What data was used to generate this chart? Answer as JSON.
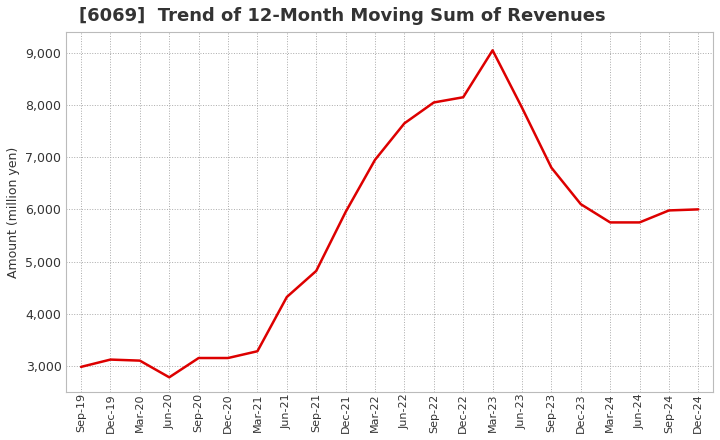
{
  "title": "[6069]  Trend of 12-Month Moving Sum of Revenues",
  "ylabel": "Amount (million yen)",
  "line_color": "#dd0000",
  "background_color": "#ffffff",
  "plot_bg_color": "#ffffff",
  "grid_color": "#aaaaaa",
  "ylim": [
    2500,
    9400
  ],
  "yticks": [
    3000,
    4000,
    5000,
    6000,
    7000,
    8000,
    9000
  ],
  "labels": [
    "Sep-19",
    "Dec-19",
    "Mar-20",
    "Jun-20",
    "Sep-20",
    "Dec-20",
    "Mar-21",
    "Jun-21",
    "Sep-21",
    "Dec-21",
    "Mar-22",
    "Jun-22",
    "Sep-22",
    "Dec-22",
    "Mar-23",
    "Jun-23",
    "Sep-23",
    "Dec-23",
    "Mar-24",
    "Jun-24",
    "Sep-24",
    "Dec-24"
  ],
  "values": [
    2980,
    3120,
    3100,
    2780,
    3150,
    3150,
    3280,
    4320,
    4820,
    5950,
    6950,
    7650,
    8050,
    8150,
    9050,
    7950,
    6800,
    6100,
    5750,
    5750,
    5980,
    6000
  ],
  "title_fontsize": 13,
  "title_color": "#333333",
  "ylabel_fontsize": 9,
  "ytick_fontsize": 9,
  "xtick_fontsize": 8
}
